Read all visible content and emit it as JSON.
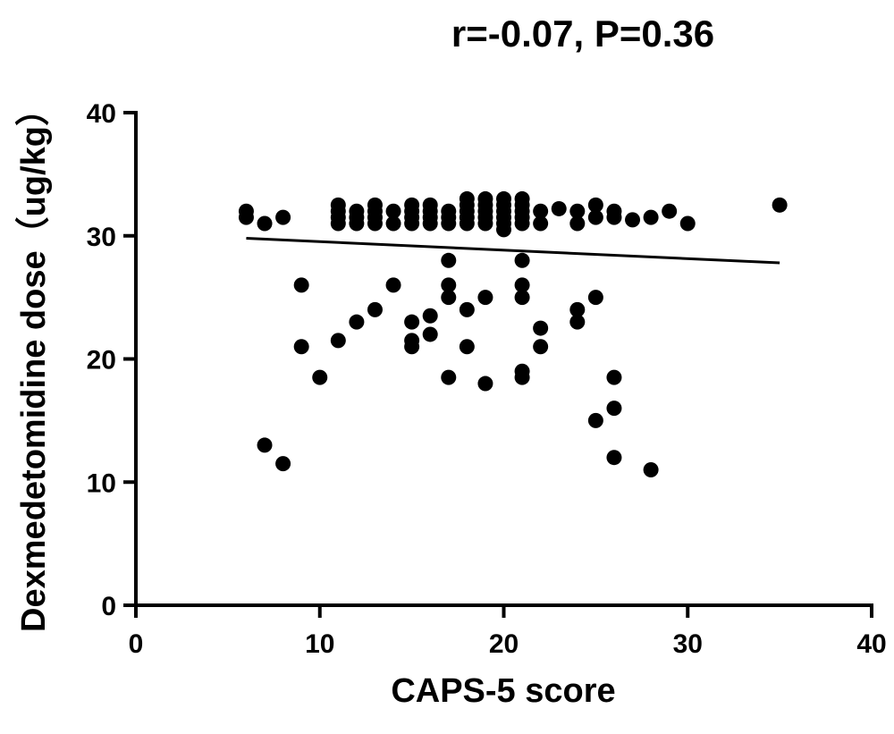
{
  "chart_data": {
    "type": "scatter",
    "title": "r=-0.07, P=0.36",
    "xlabel": "CAPS-5 score",
    "ylabel": "Dexmedetomidine dose（ug/kg）",
    "xlim": [
      0,
      40
    ],
    "ylim": [
      0,
      40
    ],
    "xticks": [
      0,
      10,
      20,
      30,
      40
    ],
    "yticks": [
      0,
      10,
      20,
      30,
      40
    ],
    "grid": false,
    "colors": {
      "points": "#000000",
      "line": "#000000",
      "axes": "#000000"
    },
    "regression_line": {
      "x": [
        6,
        35
      ],
      "y": [
        29.8,
        27.8
      ]
    },
    "points": [
      [
        6,
        32
      ],
      [
        6,
        31.5
      ],
      [
        7,
        31
      ],
      [
        8,
        31.5
      ],
      [
        11,
        32.5
      ],
      [
        11,
        32
      ],
      [
        11,
        31.5
      ],
      [
        11,
        31
      ],
      [
        12,
        32
      ],
      [
        12,
        31.5
      ],
      [
        12,
        31
      ],
      [
        13,
        32.5
      ],
      [
        13,
        32
      ],
      [
        13,
        31.5
      ],
      [
        13,
        31
      ],
      [
        14,
        32
      ],
      [
        14,
        31
      ],
      [
        15,
        32.5
      ],
      [
        15,
        32
      ],
      [
        15,
        31.5
      ],
      [
        15,
        31
      ],
      [
        16,
        32.5
      ],
      [
        16,
        32
      ],
      [
        16,
        31.5
      ],
      [
        16,
        31
      ],
      [
        17,
        32
      ],
      [
        17,
        31.5
      ],
      [
        17,
        31
      ],
      [
        18,
        33
      ],
      [
        18,
        32.5
      ],
      [
        18,
        32
      ],
      [
        18,
        31.5
      ],
      [
        18,
        31
      ],
      [
        19,
        33
      ],
      [
        19,
        32.5
      ],
      [
        19,
        32
      ],
      [
        19,
        31.5
      ],
      [
        19,
        31
      ],
      [
        20,
        33
      ],
      [
        20,
        32.5
      ],
      [
        20,
        32
      ],
      [
        20,
        31.5
      ],
      [
        20,
        31
      ],
      [
        20,
        30.5
      ],
      [
        21,
        33
      ],
      [
        21,
        32.5
      ],
      [
        21,
        32
      ],
      [
        21,
        31.5
      ],
      [
        21,
        31
      ],
      [
        22,
        32
      ],
      [
        22,
        31
      ],
      [
        23,
        32.2
      ],
      [
        24,
        32
      ],
      [
        24,
        31
      ],
      [
        25,
        32.5
      ],
      [
        25,
        31.5
      ],
      [
        26,
        32
      ],
      [
        26,
        31.5
      ],
      [
        27,
        31.3
      ],
      [
        28,
        31.5
      ],
      [
        29,
        32
      ],
      [
        30,
        31
      ],
      [
        35,
        32.5
      ],
      [
        7,
        13
      ],
      [
        8,
        11.5
      ],
      [
        9,
        26
      ],
      [
        9,
        21
      ],
      [
        10,
        18.5
      ],
      [
        11,
        21.5
      ],
      [
        12,
        23
      ],
      [
        13,
        24
      ],
      [
        14,
        26
      ],
      [
        15,
        23
      ],
      [
        15,
        21.5
      ],
      [
        15,
        21
      ],
      [
        16,
        23.5
      ],
      [
        16,
        22
      ],
      [
        17,
        28
      ],
      [
        17,
        26
      ],
      [
        17,
        25
      ],
      [
        17,
        18.5
      ],
      [
        18,
        24
      ],
      [
        18,
        21
      ],
      [
        19,
        25
      ],
      [
        19,
        18
      ],
      [
        21,
        28
      ],
      [
        21,
        26
      ],
      [
        21,
        25
      ],
      [
        21,
        19
      ],
      [
        21,
        18.5
      ],
      [
        22,
        22.5
      ],
      [
        22,
        21
      ],
      [
        24,
        24
      ],
      [
        24,
        23
      ],
      [
        25,
        25
      ],
      [
        25,
        15
      ],
      [
        26,
        18.5
      ],
      [
        26,
        16
      ],
      [
        26,
        12
      ],
      [
        28,
        11
      ]
    ]
  }
}
